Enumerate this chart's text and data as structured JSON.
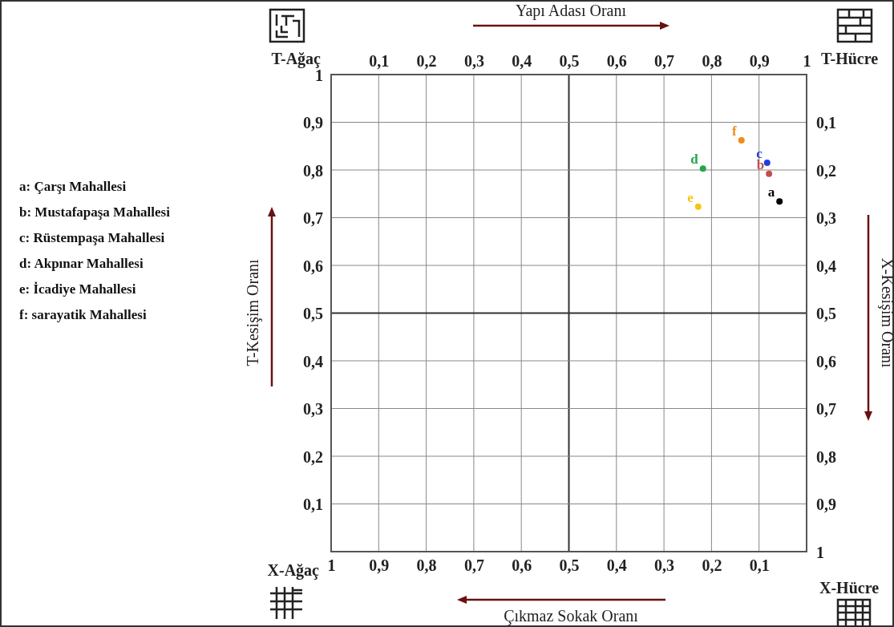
{
  "chart_data": {
    "type": "scatter",
    "xlabel": "Yapı Adası Oranı",
    "x2label": "Çıkmaz Sokak Oranı",
    "ylabel": "T-Kesişim Oranı",
    "y2label": "X-Kesişim Oranı",
    "xlim": [
      0,
      1
    ],
    "xticks": [
      {
        "value": 0.1,
        "label": "0,1"
      },
      {
        "value": 0.2,
        "label": "0,2"
      },
      {
        "value": 0.3,
        "label": "0,3"
      },
      {
        "value": 0.4,
        "label": "0,4"
      },
      {
        "value": 0.5,
        "label": "0,5"
      },
      {
        "value": 0.6,
        "label": "0,6"
      },
      {
        "value": 0.7,
        "label": "0,7"
      },
      {
        "value": 0.8,
        "label": "0,8"
      },
      {
        "value": 0.9,
        "label": "0,9"
      },
      1
    ],
    "x2lim": [
      1,
      0
    ],
    "x2ticks": [
      1,
      {
        "value": 0.9,
        "label": "0,9"
      },
      {
        "value": 0.8,
        "label": "0,8"
      },
      {
        "value": 0.7,
        "label": "0,7"
      },
      {
        "value": 0.6,
        "label": "0,6"
      },
      {
        "value": 0.5,
        "label": "0,5"
      },
      {
        "value": 0.4,
        "label": "0,4"
      },
      {
        "value": 0.3,
        "label": "0,3"
      },
      {
        "value": 0.2,
        "label": "0,2"
      },
      {
        "value": 0.1,
        "label": "0,1"
      }
    ],
    "ylim": [
      0,
      1
    ],
    "yticks": [
      {
        "value": 0.1,
        "label": "0,1"
      },
      {
        "value": 0.2,
        "label": "0,2"
      },
      {
        "value": 0.3,
        "label": "0,3"
      },
      {
        "value": 0.4,
        "label": "0,4"
      },
      {
        "value": 0.5,
        "label": "0,5"
      },
      {
        "value": 0.6,
        "label": "0,6"
      },
      {
        "value": 0.7,
        "label": "0,7"
      },
      {
        "value": 0.8,
        "label": "0,8"
      },
      {
        "value": 0.9,
        "label": "0,9"
      },
      1
    ],
    "y2lim": [
      1,
      0
    ],
    "y2ticks": [
      {
        "value": 0.1,
        "label": "0,1"
      },
      {
        "value": 0.2,
        "label": "0,2"
      },
      {
        "value": 0.3,
        "label": "0,3"
      },
      {
        "value": 0.4,
        "label": "0,4"
      },
      {
        "value": 0.5,
        "label": "0,5"
      },
      {
        "value": 0.6,
        "label": "0,6"
      },
      {
        "value": 0.7,
        "label": "0,7"
      },
      {
        "value": 0.8,
        "label": "0,8"
      },
      {
        "value": 0.9,
        "label": "0,9"
      },
      1
    ],
    "grid": true,
    "marker": "circle",
    "series": [
      {
        "name": "a",
        "color": "#000000",
        "x": [
          0.943
        ],
        "values": [
          0.734
        ]
      },
      {
        "name": "b",
        "color": "#c0504d",
        "x": [
          0.921
        ],
        "values": [
          0.792
        ]
      },
      {
        "name": "c",
        "color": "#1f3fe0",
        "x": [
          0.917
        ],
        "values": [
          0.815
        ]
      },
      {
        "name": "d",
        "color": "#22a84a",
        "x": [
          0.782
        ],
        "values": [
          0.803
        ]
      },
      {
        "name": "e",
        "color": "#f5c518",
        "x": [
          0.772
        ],
        "values": [
          0.723
        ]
      },
      {
        "name": "f",
        "color": "#f08a1a",
        "x": [
          0.863
        ],
        "values": [
          0.862
        ]
      }
    ],
    "annotations": [
      "T-Ağaç",
      "T-Hücre",
      "X-Ağaç",
      "X-Hücre",
      "a: Çarşı Mahallesi",
      "b: Mustafapaşa Mahallesi",
      "c: Rüstempaşa Mahallesi",
      "d: Akpınar Mahallesi",
      "e: İcadiye Mahallesi",
      "f: sarayatik Mahallesi"
    ]
  }
}
